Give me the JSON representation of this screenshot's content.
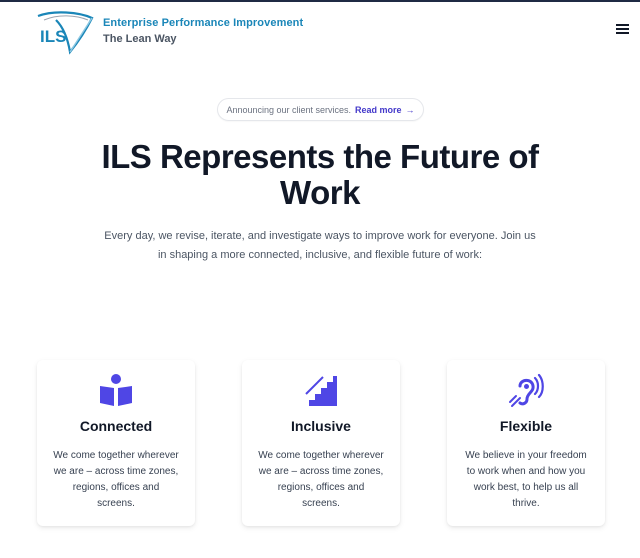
{
  "header": {
    "logo_text": "ILS",
    "brand_name": "Enterprise Performance Improvement",
    "tagline": "The Lean Way",
    "menu_icon": "hamburger-menu-icon"
  },
  "announcement": {
    "text": "Announcing our client services.",
    "link_label": "Read more",
    "arrow": "→"
  },
  "hero": {
    "title": "ILS Represents the Future of Work",
    "subtitle": "Every day, we revise, iterate, and investigate ways to improve work for everyone. Join us in shaping a more connected, inclusive, and flexible future of work:"
  },
  "features": [
    {
      "icon": "reading-person-icon",
      "title": "Connected",
      "description": "We come together wherever we are – across time zones, regions, offices and screens."
    },
    {
      "icon": "stairs-icon",
      "title": "Inclusive",
      "description": "We come together wherever we are – across time zones, regions, offices and screens."
    },
    {
      "icon": "hearing-assist-icon",
      "title": "Flexible",
      "description": "We believe in your freedom to work when and how you work best, to help us all thrive."
    }
  ],
  "colors": {
    "accent": "#4f46e5",
    "brand": "#1a86b8",
    "title": "#111827"
  }
}
